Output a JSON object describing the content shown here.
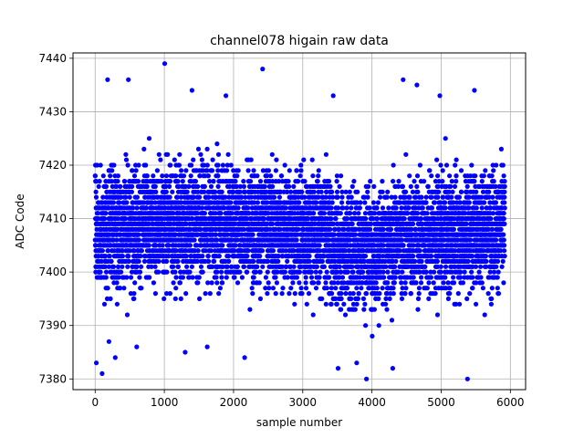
{
  "chart_data": {
    "type": "scatter",
    "title": "channel078 higain raw data",
    "xlabel": "sample number",
    "ylabel": "ADC Code",
    "xlim": [
      -320,
      6220
    ],
    "ylim": [
      7378,
      7441
    ],
    "xticks": [
      0,
      1000,
      2000,
      3000,
      4000,
      5000,
      6000
    ],
    "yticks": [
      7380,
      7390,
      7400,
      7410,
      7420,
      7430,
      7440
    ],
    "grid": true,
    "marker_color": "#0000ff",
    "series": [
      {
        "approx_count": 6000,
        "x_range": [
          0,
          5920
        ],
        "center": 7408,
        "core_band": [
          7394,
          7421
        ],
        "extremes": [
          {
            "x": 18,
            "y": 7383
          },
          {
            "x": 100,
            "y": 7381
          },
          {
            "x": 200,
            "y": 7387
          },
          {
            "x": 290,
            "y": 7384
          },
          {
            "x": 600,
            "y": 7386
          },
          {
            "x": 1005,
            "y": 7439
          },
          {
            "x": 1300,
            "y": 7385
          },
          {
            "x": 1400,
            "y": 7434
          },
          {
            "x": 1620,
            "y": 7386
          },
          {
            "x": 2160,
            "y": 7384
          },
          {
            "x": 2420,
            "y": 7438
          },
          {
            "x": 3510,
            "y": 7382
          },
          {
            "x": 3780,
            "y": 7383
          },
          {
            "x": 3920,
            "y": 7380
          },
          {
            "x": 4450,
            "y": 7436
          },
          {
            "x": 4650,
            "y": 7435
          },
          {
            "x": 4980,
            "y": 7433
          },
          {
            "x": 5380,
            "y": 7380
          },
          {
            "x": 5480,
            "y": 7434
          },
          {
            "x": 180,
            "y": 7436
          },
          {
            "x": 480,
            "y": 7436
          },
          {
            "x": 1890,
            "y": 7433
          },
          {
            "x": 3440,
            "y": 7433
          },
          {
            "x": 4300,
            "y": 7382
          }
        ]
      }
    ]
  }
}
